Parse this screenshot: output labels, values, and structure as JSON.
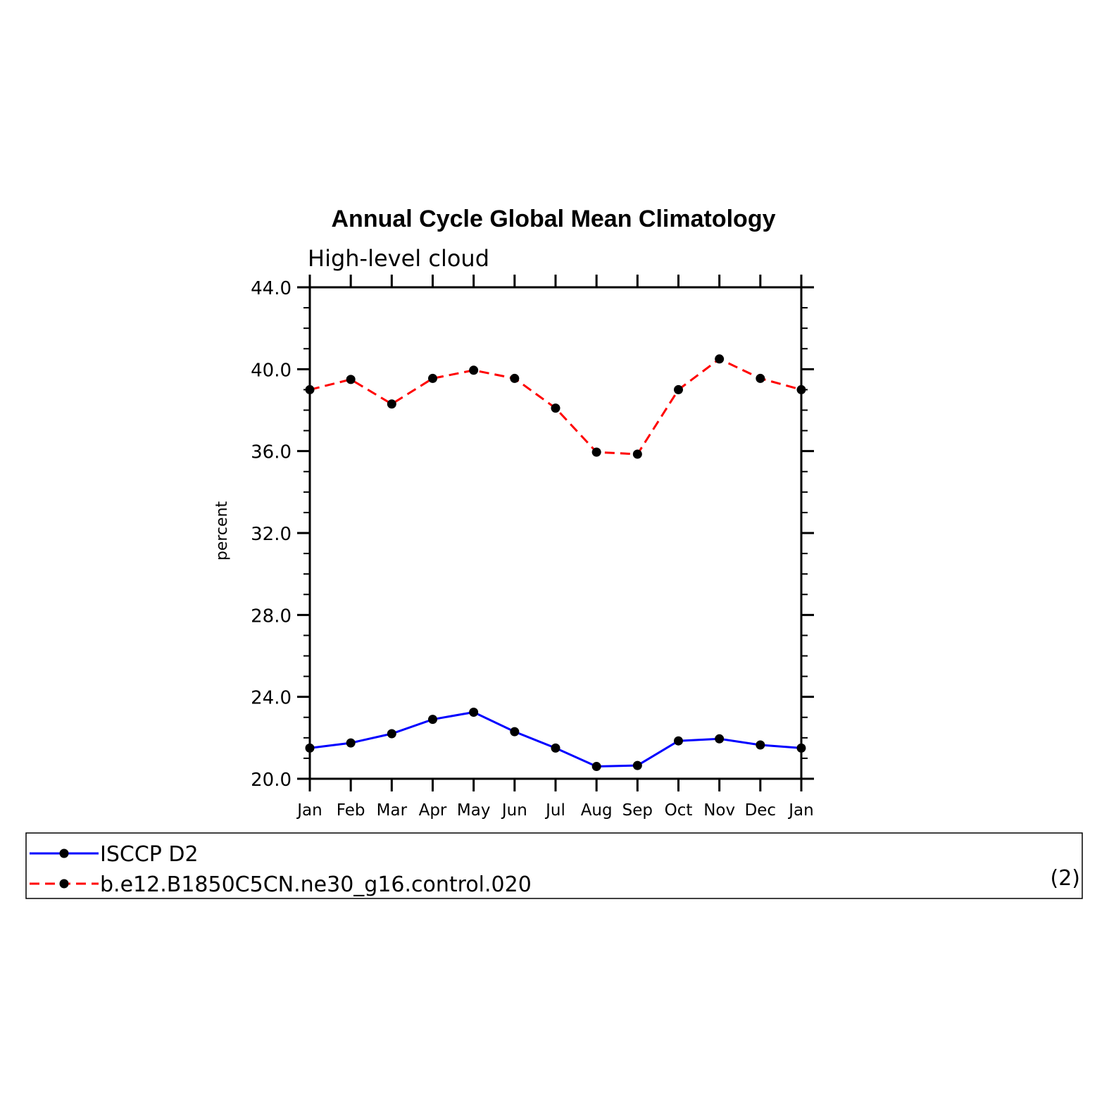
{
  "chart_data": {
    "type": "line",
    "title": "Annual Cycle Global Mean Climatology",
    "subtitle": "High-level cloud",
    "xlabel": "",
    "ylabel": "percent",
    "categories": [
      "Jan",
      "Feb",
      "Mar",
      "Apr",
      "May",
      "Jun",
      "Jul",
      "Aug",
      "Sep",
      "Oct",
      "Nov",
      "Dec",
      "Jan"
    ],
    "ylim": [
      20.0,
      44.0
    ],
    "yticks": [
      "20.0",
      "24.0",
      "28.0",
      "32.0",
      "36.0",
      "40.0",
      "44.0"
    ],
    "ytick_values": [
      20,
      24,
      28,
      32,
      36,
      40,
      44
    ],
    "minor_tick_step": 1,
    "grid": false,
    "legend_position": "bottom",
    "legend_note": "(2)",
    "series": [
      {
        "name": "ISCCP D2",
        "color": "#0000ff",
        "dash": "solid",
        "values": [
          21.5,
          21.75,
          22.2,
          22.9,
          23.25,
          22.3,
          21.5,
          20.6,
          20.65,
          21.85,
          21.95,
          21.65,
          21.5
        ]
      },
      {
        "name": "b.e12.B1850C5CN.ne30_g16.control.020",
        "color": "#ff0000",
        "dash": "dashed",
        "values": [
          39.0,
          39.5,
          38.3,
          39.55,
          39.95,
          39.55,
          38.1,
          35.95,
          35.85,
          39.0,
          40.5,
          39.55,
          39.0
        ]
      }
    ]
  }
}
